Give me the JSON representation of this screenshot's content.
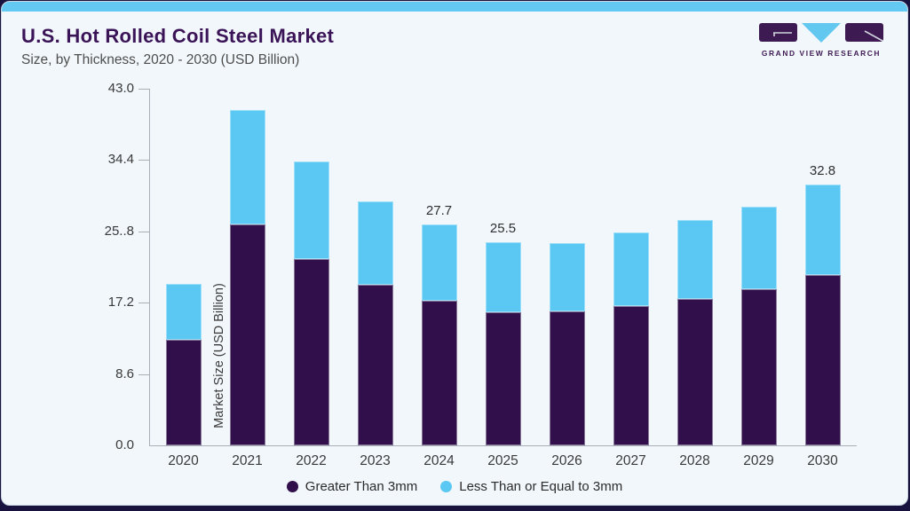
{
  "header": {
    "title": "U.S. Hot Rolled Coil Steel Market",
    "subtitle": "Size, by Thickness, 2020 - 2030 (USD Billion)"
  },
  "logo": {
    "text": "GRAND VIEW RESEARCH"
  },
  "colors": {
    "series_dark": "#310F4A",
    "series_blue": "#5AC8F3",
    "accent_topbar": "#63C8F2",
    "title_purple": "#3A1457",
    "card_bg": "#F2F7FB",
    "page_bg": "#18123F"
  },
  "chart_data": {
    "type": "bar",
    "stacked": true,
    "title": "U.S. Hot Rolled Coil Steel Market",
    "subtitle": "Size, by Thickness, 2020 - 2030 (USD Billion)",
    "categories": [
      "2020",
      "2021",
      "2022",
      "2023",
      "2024",
      "2025",
      "2026",
      "2027",
      "2028",
      "2029",
      "2030"
    ],
    "series": [
      {
        "name": "Greater Than 3mm",
        "color": "#310F4A",
        "values": [
          13.2,
          27.7,
          23.4,
          20.2,
          18.1,
          16.7,
          16.8,
          17.5,
          18.4,
          19.6,
          21.4
        ]
      },
      {
        "name": "Less Than or Equal to 3mm",
        "color": "#5AC8F3",
        "values": [
          7.0,
          14.4,
          12.3,
          10.5,
          9.6,
          8.8,
          8.6,
          9.2,
          9.9,
          10.4,
          11.4
        ]
      }
    ],
    "totals": [
      20.2,
      42.1,
      35.7,
      30.7,
      27.7,
      25.5,
      25.4,
      26.7,
      28.3,
      30.0,
      32.8
    ],
    "data_labels": {
      "2024": "27.7",
      "2025": "25.5",
      "2030": "32.8"
    },
    "ylabel": "Market Size (USD Billion)",
    "xlabel": "",
    "yticks": [
      "0.0",
      "8.6",
      "17.2",
      "25..8",
      "34.4",
      "43.0"
    ],
    "ylim": [
      0,
      43.0
    ],
    "grid": false,
    "legend_position": "bottom"
  }
}
